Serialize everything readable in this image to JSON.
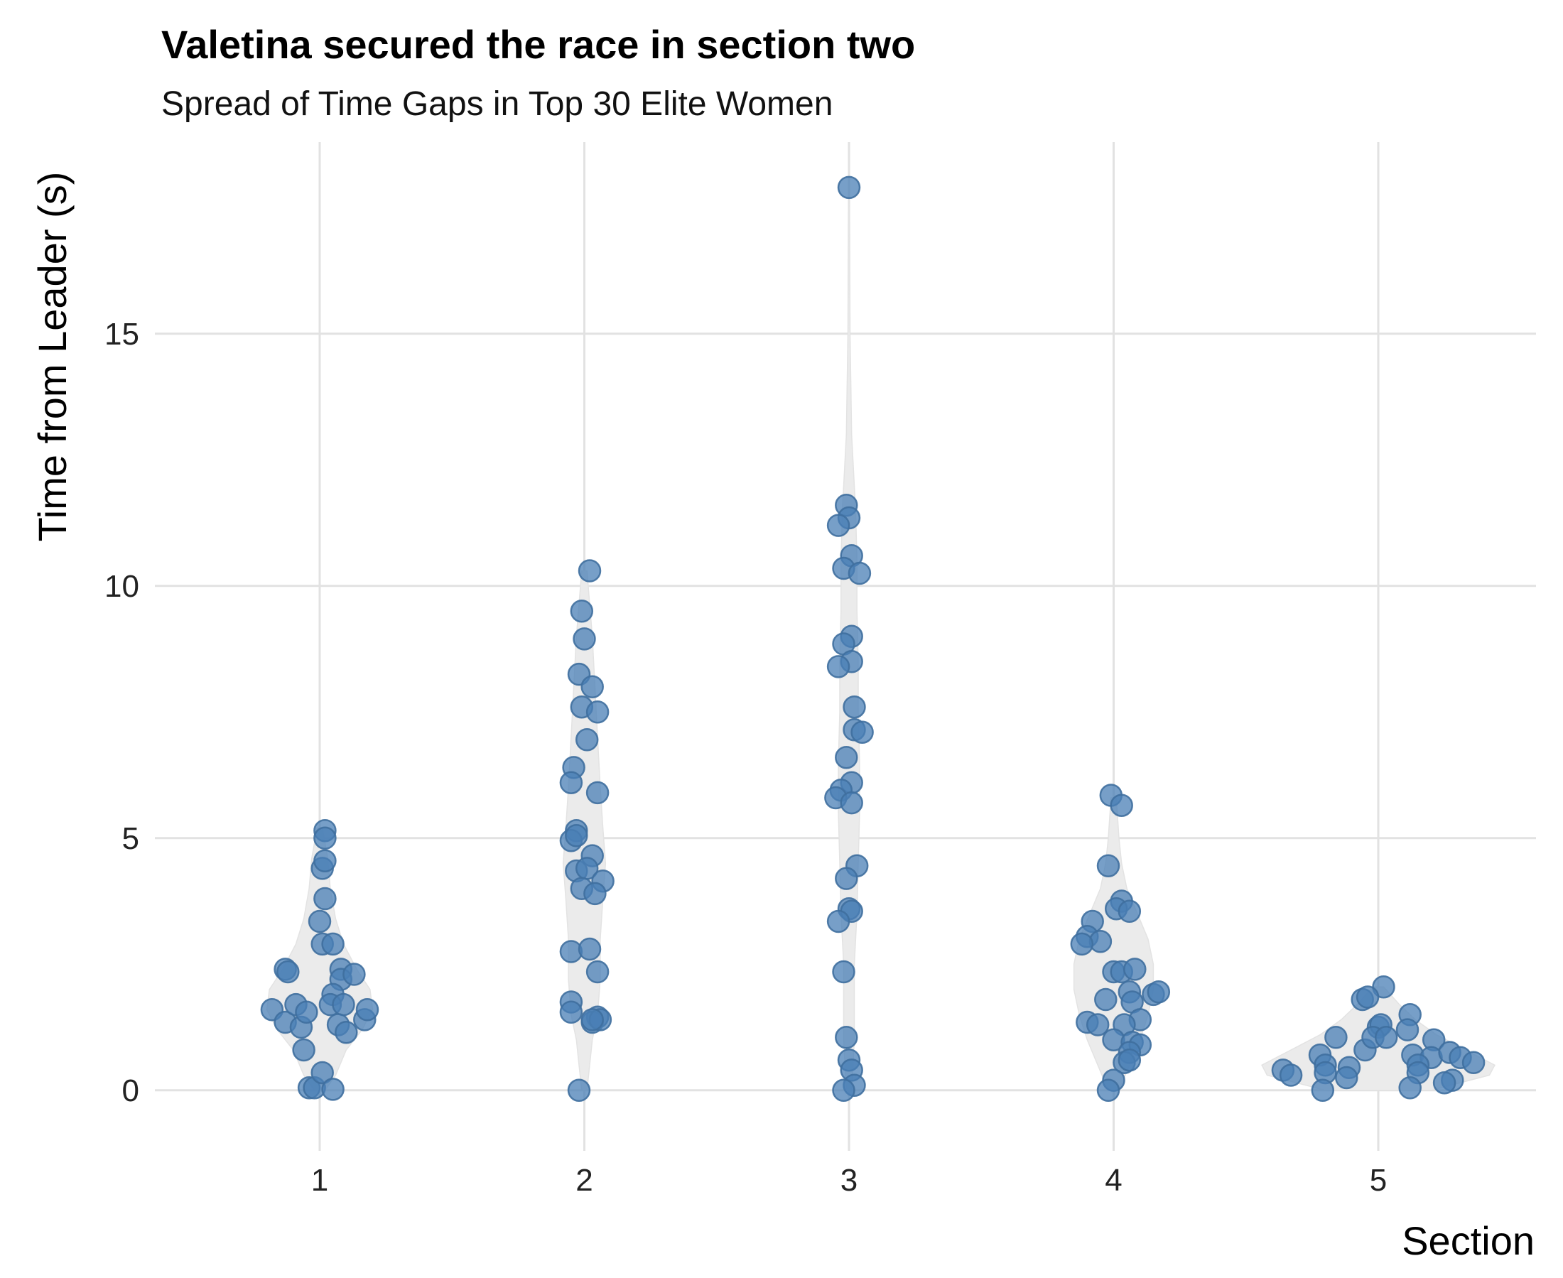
{
  "chart_data": {
    "type": "scatter",
    "subtype": "violin with jittered points",
    "title": "Valetina secured the race in section two",
    "subtitle": "Spread of Time Gaps in Top 30 Elite Women",
    "xlabel": "Section",
    "ylabel": "Time from Leader (s)",
    "categories": [
      "1",
      "2",
      "3",
      "4",
      "5"
    ],
    "x_ticks": [
      "1",
      "2",
      "3",
      "4",
      "5"
    ],
    "y_ticks": [
      0,
      5,
      10,
      15
    ],
    "y_tick_labels": [
      "0",
      "5",
      "10",
      "15"
    ],
    "ylim": [
      -1.2,
      18.8
    ],
    "grid": true,
    "legend": "none",
    "colors": {
      "points": "#4a7fb5",
      "violin": "#ebebeb",
      "grid": "#e2e2e2"
    },
    "series": [
      {
        "section": "1",
        "points": [
          [
            -0.13,
            2.4
          ],
          [
            -0.12,
            2.35
          ],
          [
            -0.18,
            1.6
          ],
          [
            -0.13,
            1.35
          ],
          [
            -0.09,
            1.7
          ],
          [
            -0.07,
            1.25
          ],
          [
            -0.05,
            1.55
          ],
          [
            -0.06,
            0.8
          ],
          [
            -0.04,
            0.05
          ],
          [
            -0.02,
            0.05
          ],
          [
            0.01,
            0.35
          ],
          [
            0.05,
            0.02
          ],
          [
            0.02,
            5.15
          ],
          [
            0.02,
            5.0
          ],
          [
            0.01,
            4.4
          ],
          [
            0.02,
            4.55
          ],
          [
            0.02,
            3.8
          ],
          [
            0.0,
            3.35
          ],
          [
            0.01,
            2.9
          ],
          [
            0.05,
            2.9
          ],
          [
            0.08,
            2.4
          ],
          [
            0.08,
            2.2
          ],
          [
            0.13,
            2.3
          ],
          [
            0.05,
            1.9
          ],
          [
            0.04,
            1.7
          ],
          [
            0.09,
            1.7
          ],
          [
            0.07,
            1.3
          ],
          [
            0.1,
            1.15
          ],
          [
            0.17,
            1.4
          ],
          [
            0.18,
            1.6
          ]
        ]
      },
      {
        "section": "2",
        "points": [
          [
            0.02,
            10.3
          ],
          [
            -0.01,
            9.5
          ],
          [
            0.0,
            8.95
          ],
          [
            -0.02,
            8.25
          ],
          [
            0.03,
            8.0
          ],
          [
            -0.01,
            7.6
          ],
          [
            0.05,
            7.5
          ],
          [
            0.01,
            6.95
          ],
          [
            -0.04,
            6.4
          ],
          [
            -0.05,
            6.1
          ],
          [
            0.05,
            5.9
          ],
          [
            -0.03,
            5.15
          ],
          [
            -0.05,
            4.95
          ],
          [
            -0.03,
            5.05
          ],
          [
            0.03,
            4.65
          ],
          [
            -0.03,
            4.35
          ],
          [
            0.01,
            4.4
          ],
          [
            0.07,
            4.15
          ],
          [
            -0.01,
            4.0
          ],
          [
            0.04,
            3.9
          ],
          [
            -0.05,
            2.75
          ],
          [
            0.02,
            2.8
          ],
          [
            0.05,
            2.35
          ],
          [
            -0.05,
            1.75
          ],
          [
            -0.05,
            1.55
          ],
          [
            0.05,
            1.45
          ],
          [
            0.03,
            1.35
          ],
          [
            0.06,
            1.4
          ],
          [
            -0.02,
            0.0
          ],
          [
            0.03,
            1.4
          ]
        ]
      },
      {
        "section": "3",
        "points": [
          [
            0.0,
            17.9
          ],
          [
            -0.01,
            11.6
          ],
          [
            0.0,
            11.35
          ],
          [
            -0.04,
            11.2
          ],
          [
            0.01,
            10.6
          ],
          [
            -0.02,
            10.35
          ],
          [
            0.04,
            10.25
          ],
          [
            0.01,
            9.0
          ],
          [
            -0.02,
            8.85
          ],
          [
            0.01,
            8.5
          ],
          [
            -0.04,
            8.4
          ],
          [
            0.02,
            7.6
          ],
          [
            0.02,
            7.15
          ],
          [
            0.05,
            7.1
          ],
          [
            -0.01,
            6.6
          ],
          [
            0.01,
            6.1
          ],
          [
            -0.03,
            5.95
          ],
          [
            -0.05,
            5.8
          ],
          [
            0.01,
            5.7
          ],
          [
            0.03,
            4.45
          ],
          [
            -0.01,
            4.2
          ],
          [
            0.0,
            3.6
          ],
          [
            0.01,
            3.55
          ],
          [
            -0.04,
            3.35
          ],
          [
            -0.02,
            2.35
          ],
          [
            -0.01,
            1.05
          ],
          [
            0.0,
            0.6
          ],
          [
            0.01,
            0.4
          ],
          [
            0.02,
            0.1
          ],
          [
            -0.02,
            0.0
          ]
        ]
      },
      {
        "section": "4",
        "points": [
          [
            -0.01,
            5.85
          ],
          [
            0.03,
            5.65
          ],
          [
            -0.02,
            4.45
          ],
          [
            0.03,
            3.75
          ],
          [
            0.01,
            3.6
          ],
          [
            0.06,
            3.55
          ],
          [
            -0.08,
            3.35
          ],
          [
            -0.1,
            3.05
          ],
          [
            -0.05,
            2.95
          ],
          [
            -0.12,
            2.9
          ],
          [
            0.0,
            2.35
          ],
          [
            0.03,
            2.35
          ],
          [
            0.08,
            2.4
          ],
          [
            0.06,
            1.95
          ],
          [
            0.15,
            1.9
          ],
          [
            0.17,
            1.95
          ],
          [
            -0.03,
            1.8
          ],
          [
            0.07,
            1.75
          ],
          [
            0.1,
            1.4
          ],
          [
            -0.1,
            1.35
          ],
          [
            -0.06,
            1.3
          ],
          [
            0.04,
            1.3
          ],
          [
            0.0,
            1.0
          ],
          [
            0.07,
            0.95
          ],
          [
            0.1,
            0.9
          ],
          [
            0.06,
            0.75
          ],
          [
            0.04,
            0.55
          ],
          [
            0.0,
            0.2
          ],
          [
            -0.02,
            0.0
          ],
          [
            0.06,
            0.6
          ]
        ]
      },
      {
        "section": "5",
        "points": [
          [
            0.02,
            2.05
          ],
          [
            -0.06,
            1.8
          ],
          [
            -0.04,
            1.85
          ],
          [
            0.0,
            1.25
          ],
          [
            0.01,
            1.3
          ],
          [
            0.12,
            1.5
          ],
          [
            0.11,
            1.2
          ],
          [
            -0.16,
            1.05
          ],
          [
            -0.05,
            0.8
          ],
          [
            -0.02,
            1.05
          ],
          [
            0.03,
            1.05
          ],
          [
            0.21,
            1.0
          ],
          [
            0.13,
            0.7
          ],
          [
            0.2,
            0.65
          ],
          [
            0.15,
            0.5
          ],
          [
            0.27,
            0.75
          ],
          [
            0.31,
            0.65
          ],
          [
            0.36,
            0.55
          ],
          [
            -0.22,
            0.7
          ],
          [
            -0.2,
            0.5
          ],
          [
            -0.11,
            0.45
          ],
          [
            -0.2,
            0.35
          ],
          [
            -0.36,
            0.4
          ],
          [
            -0.33,
            0.3
          ],
          [
            -0.12,
            0.25
          ],
          [
            0.28,
            0.2
          ],
          [
            0.25,
            0.15
          ],
          [
            0.15,
            0.35
          ],
          [
            -0.21,
            0.0
          ],
          [
            0.12,
            0.05
          ]
        ]
      }
    ],
    "violins": [
      {
        "section": "1",
        "profile": [
          [
            0.0,
            0.02
          ],
          [
            0.3,
            0.06
          ],
          [
            0.8,
            0.1
          ],
          [
            1.2,
            0.16
          ],
          [
            1.6,
            0.2
          ],
          [
            2.0,
            0.19
          ],
          [
            2.4,
            0.14
          ],
          [
            2.9,
            0.09
          ],
          [
            3.4,
            0.06
          ],
          [
            4.0,
            0.04
          ],
          [
            4.6,
            0.03
          ],
          [
            5.2,
            0.01
          ]
        ]
      },
      {
        "section": "2",
        "profile": [
          [
            0.0,
            0.01
          ],
          [
            0.5,
            0.02
          ],
          [
            1.0,
            0.03
          ],
          [
            1.5,
            0.05
          ],
          [
            2.2,
            0.06
          ],
          [
            3.0,
            0.06
          ],
          [
            3.8,
            0.07
          ],
          [
            4.5,
            0.08
          ],
          [
            5.2,
            0.07
          ],
          [
            6.0,
            0.06
          ],
          [
            7.0,
            0.05
          ],
          [
            8.0,
            0.04
          ],
          [
            9.0,
            0.03
          ],
          [
            10.3,
            0.01
          ]
        ]
      },
      {
        "section": "3",
        "profile": [
          [
            0.0,
            0.01
          ],
          [
            1.0,
            0.02
          ],
          [
            2.5,
            0.02
          ],
          [
            3.5,
            0.03
          ],
          [
            4.5,
            0.035
          ],
          [
            5.5,
            0.04
          ],
          [
            6.5,
            0.04
          ],
          [
            7.5,
            0.035
          ],
          [
            8.5,
            0.035
          ],
          [
            9.5,
            0.03
          ],
          [
            10.5,
            0.03
          ],
          [
            11.5,
            0.025
          ],
          [
            13.0,
            0.01
          ],
          [
            15.0,
            0.004
          ],
          [
            17.9,
            0.002
          ]
        ]
      },
      {
        "section": "4",
        "profile": [
          [
            0.0,
            0.02
          ],
          [
            0.5,
            0.06
          ],
          [
            1.0,
            0.1
          ],
          [
            1.5,
            0.13
          ],
          [
            2.0,
            0.15
          ],
          [
            2.5,
            0.15
          ],
          [
            3.0,
            0.13
          ],
          [
            3.5,
            0.09
          ],
          [
            4.0,
            0.05
          ],
          [
            4.5,
            0.03
          ],
          [
            5.0,
            0.02
          ],
          [
            5.8,
            0.01
          ]
        ]
      },
      {
        "section": "5",
        "profile": [
          [
            0.0,
            0.2
          ],
          [
            0.3,
            0.42
          ],
          [
            0.5,
            0.44
          ],
          [
            0.8,
            0.33
          ],
          [
            1.1,
            0.22
          ],
          [
            1.4,
            0.14
          ],
          [
            1.7,
            0.08
          ],
          [
            2.05,
            0.02
          ]
        ]
      }
    ]
  }
}
